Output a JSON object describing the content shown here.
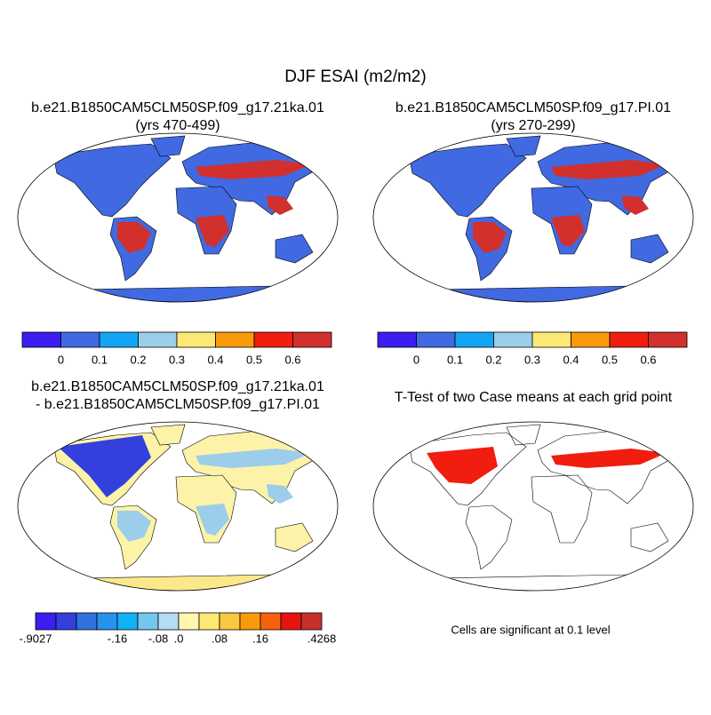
{
  "title": "DJF ESAI (m2/m2)",
  "panels": [
    {
      "title": "b.e21.B1850CAM5CLM50SP.f09_g17.21ka.01",
      "subtitle": "(yrs 470-499)",
      "colorbar": {
        "colors": [
          "#3a1ff0",
          "#4169e1",
          "#12a5f5",
          "#9ccdea",
          "#fde874",
          "#f89a0a",
          "#f11d0f",
          "#d1302d"
        ],
        "labels": [
          "0",
          "0.1",
          "0.2",
          "0.3",
          "0.4",
          "0.5",
          "0.6"
        ]
      }
    },
    {
      "title": "b.e21.B1850CAM5CLM50SP.f09_g17.PI.01",
      "subtitle": "(yrs 270-299)",
      "colorbar": {
        "colors": [
          "#3a1ff0",
          "#4169e1",
          "#12a5f5",
          "#9ccdea",
          "#fde874",
          "#f89a0a",
          "#f11d0f",
          "#d1302d"
        ],
        "labels": [
          "0",
          "0.1",
          "0.2",
          "0.3",
          "0.4",
          "0.5",
          "0.6"
        ]
      }
    },
    {
      "title": "b.e21.B1850CAM5CLM50SP.f09_g17.21ka.01",
      "subtitle": "- b.e21.B1850CAM5CLM50SP.f09_g17.PI.01",
      "colorbar": {
        "colors": [
          "#3a1ff0",
          "#3440dc",
          "#2f72e0",
          "#2592ee",
          "#12b0f5",
          "#74c6f0",
          "#b4dcf2",
          "#fff7b0",
          "#fde874",
          "#fbc640",
          "#f89a0a",
          "#f5620c",
          "#e6140f",
          "#c8302c"
        ],
        "labels": [
          "-.9027",
          "-.16",
          "-.08",
          ".0",
          ".08",
          ".16",
          ".4268"
        ]
      }
    },
    {
      "title": "T-Test of two Case means at each grid point",
      "note": "Cells are significant at 0.1 level"
    }
  ]
}
